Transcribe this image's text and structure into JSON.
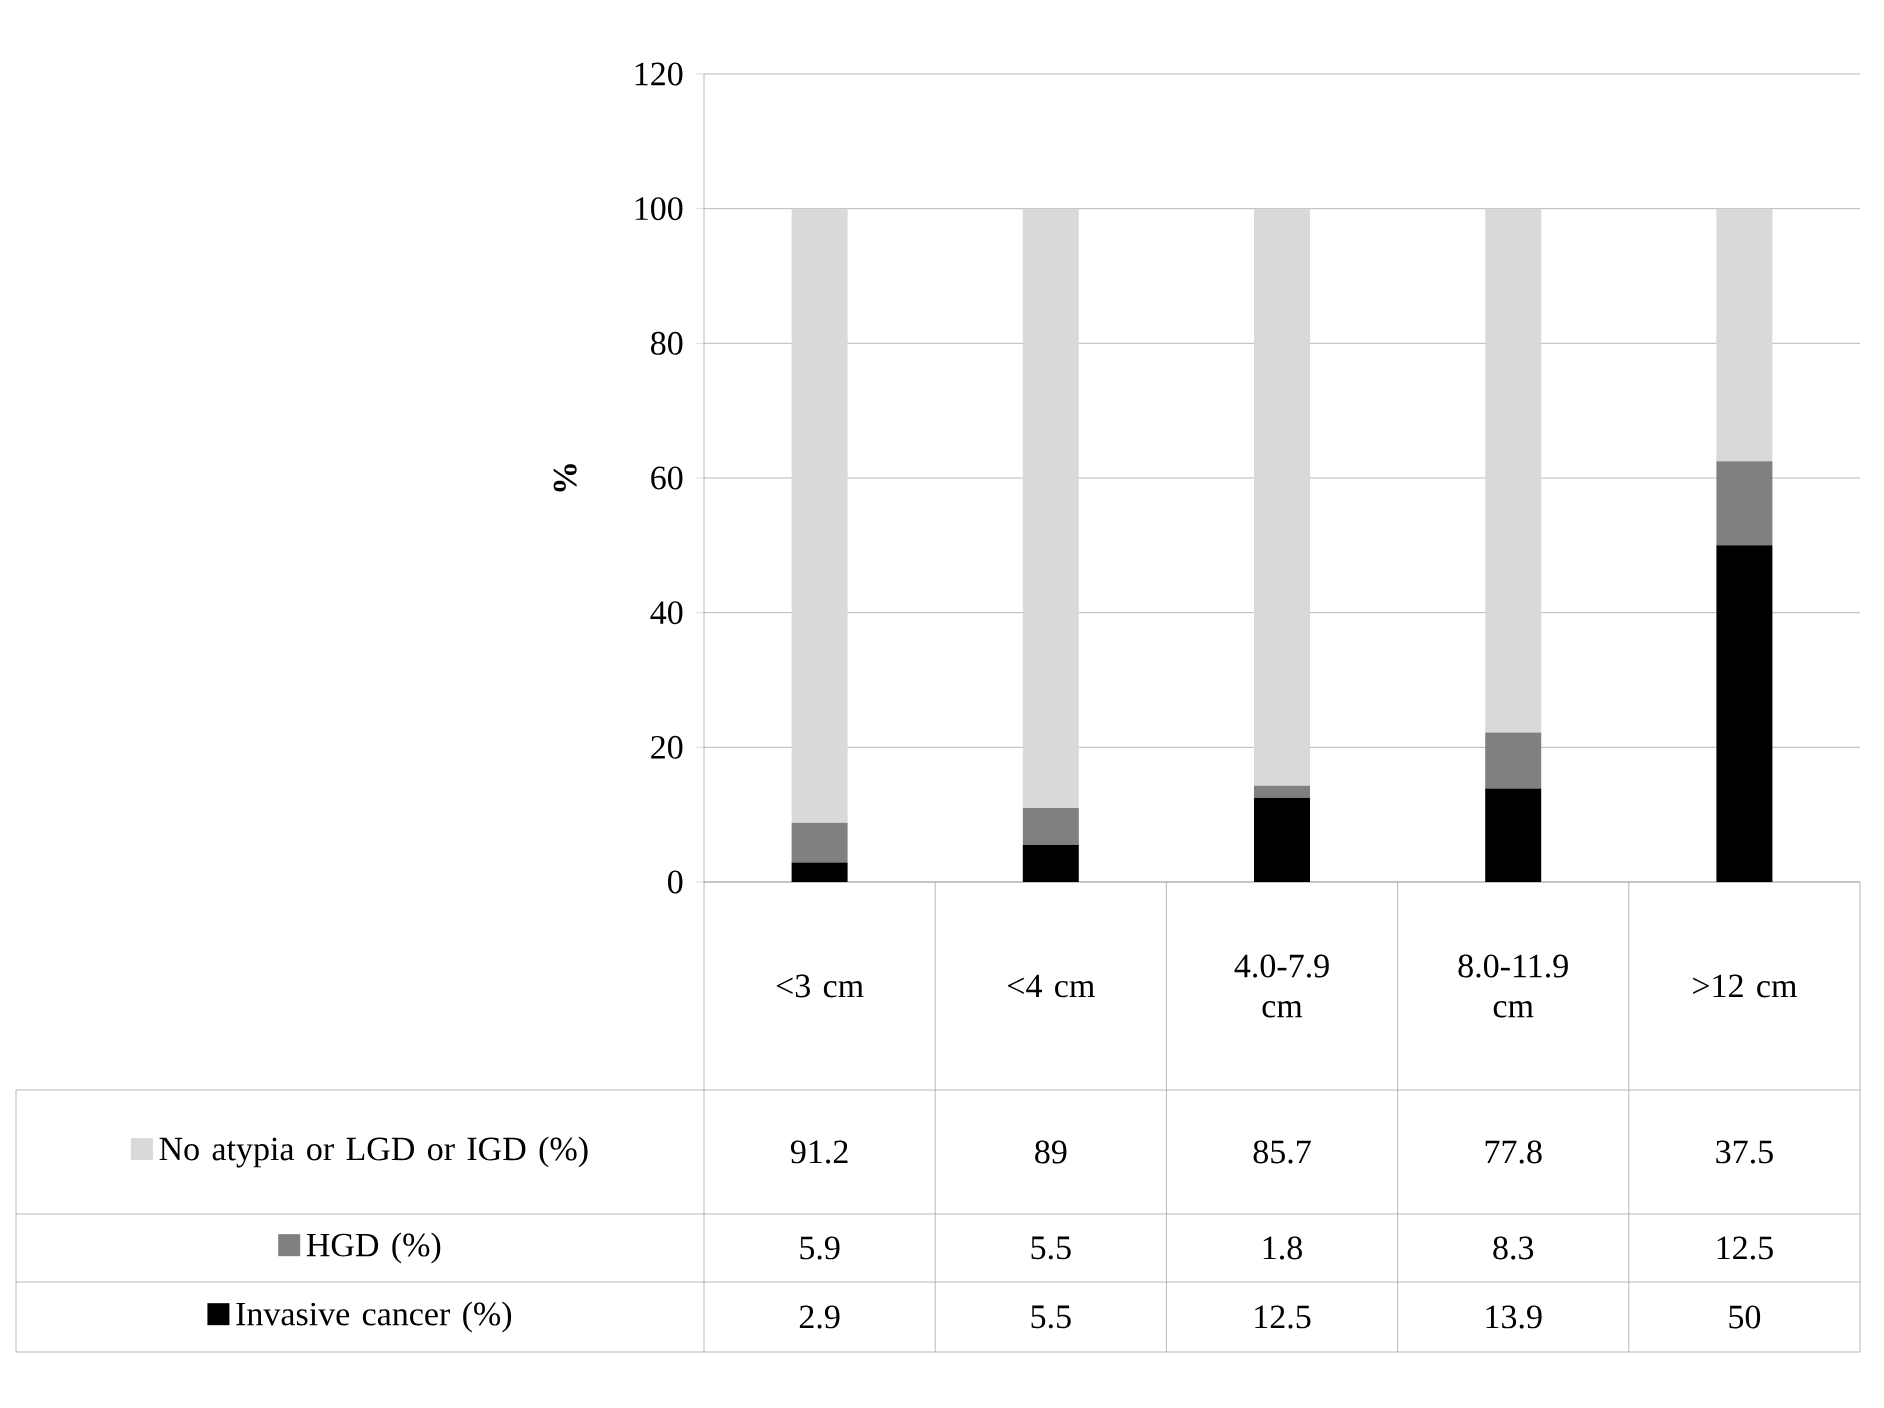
{
  "chart_data": {
    "type": "bar",
    "stacked": true,
    "ylabel": "%",
    "categories": [
      "<3 cm",
      "<4 cm",
      "4.0-7.9 cm",
      "8.0-11.9 cm",
      ">12 cm"
    ],
    "series": [
      {
        "name": "Invasive cancer (%)",
        "color": "#000000",
        "values": [
          2.9,
          5.5,
          12.5,
          13.9,
          50
        ]
      },
      {
        "name": "HGD (%)",
        "color": "#808080",
        "values": [
          5.9,
          5.5,
          1.8,
          8.3,
          12.5
        ]
      },
      {
        "name": "No atypia or LGD or IGD (%)",
        "color": "#d9d9d9",
        "values": [
          91.2,
          89,
          85.7,
          77.8,
          37.5
        ]
      }
    ],
    "ylim": [
      0,
      120
    ],
    "yticks": [
      0,
      20,
      40,
      60,
      80,
      100,
      120
    ],
    "grid": "y",
    "legend": "bottom",
    "data_labels": true
  }
}
